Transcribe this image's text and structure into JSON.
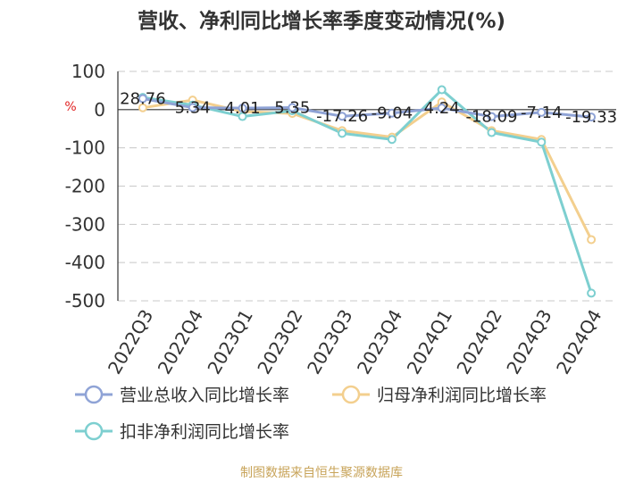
{
  "chart_data": {
    "type": "line",
    "title": "营收、净利同比增长率季度变动情况(%)",
    "unit_label": "%",
    "categories": [
      "2022Q3",
      "2022Q4",
      "2023Q1",
      "2023Q2",
      "2023Q3",
      "2023Q4",
      "2024Q1",
      "2024Q2",
      "2024Q3",
      "2024Q4"
    ],
    "ylim": [
      -500,
      100
    ],
    "yticks": [
      100,
      0,
      -100,
      -200,
      -300,
      -400,
      -500
    ],
    "grid": true,
    "legend_position": "bottom",
    "series": [
      {
        "name": "营业总收入同比增长率",
        "color": "#8fa3d6",
        "values": [
          28.76,
          5.34,
          4.01,
          5.35,
          -17.26,
          -9.04,
          4.24,
          -18.09,
          -7.14,
          -19.33
        ],
        "labels": [
          "28.76",
          "5.34",
          "4.01",
          "5.35",
          "-17.26",
          "-9.04",
          "4.24",
          "-18.09",
          "-7.14",
          "-19.33"
        ]
      },
      {
        "name": "归母净利润同比增长率",
        "color": "#f3cf8e",
        "values": [
          5,
          25,
          -5,
          -10,
          -55,
          -72,
          20,
          -55,
          -78,
          -340
        ]
      },
      {
        "name": "扣非净利润同比增长率",
        "color": "#7dcfd0",
        "values": [
          32,
          12,
          -18,
          -3,
          -62,
          -78,
          52,
          -60,
          -85,
          -480
        ]
      }
    ]
  },
  "footer": {
    "source": "制图数据来自恒生聚源数据库"
  }
}
